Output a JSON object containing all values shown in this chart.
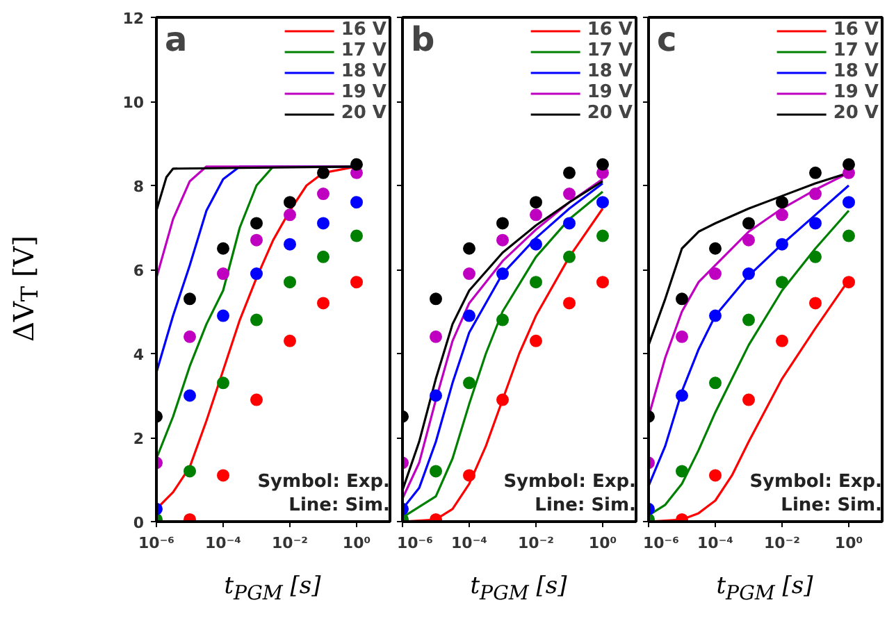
{
  "chart_data": [
    {
      "type": "line",
      "title": "a",
      "ylabel": "ΔV$_{T}$ [V]",
      "xlabel": "t$_{PGM}$ [s]",
      "log": "x",
      "xlim": [
        1e-06,
        10
      ],
      "ylim": [
        0,
        12
      ],
      "xticks": [
        {
          "value": 1e-06,
          "label": "10⁻⁶"
        },
        {
          "value": 0.0001,
          "label": "10⁻⁴"
        },
        {
          "value": 0.01,
          "label": "10⁻²"
        },
        {
          "value": 1,
          "label": "10⁰"
        }
      ],
      "yticks": [
        0,
        2,
        4,
        6,
        8,
        10,
        12
      ],
      "legend": "top right",
      "grid": false,
      "annotations": [
        "Symbol: Exp.",
        "Line: Sim."
      ],
      "series": [
        {
          "name": "16 V",
          "color": "#ff0000",
          "x": [
            1e-06,
            3.16e-06,
            1e-05,
            3.16e-05,
            0.0001,
            0.000316,
            0.001,
            0.00316,
            0.01,
            0.0316,
            0.1,
            1
          ],
          "values": [
            0.3,
            0.7,
            1.3,
            2.4,
            3.6,
            4.8,
            5.8,
            6.7,
            7.4,
            8.0,
            8.3,
            8.45
          ]
        },
        {
          "name": "17 V",
          "color": "#008000",
          "x": [
            1e-06,
            3.16e-06,
            1e-05,
            3.16e-05,
            0.0001,
            0.000316,
            0.001,
            0.00316,
            1
          ],
          "values": [
            1.5,
            2.5,
            3.7,
            4.7,
            5.5,
            7.0,
            8.0,
            8.45,
            8.45
          ]
        },
        {
          "name": "18 V",
          "color": "#0000ff",
          "x": [
            1e-06,
            3.16e-06,
            1e-05,
            3.16e-05,
            0.0001,
            0.000316,
            1
          ],
          "values": [
            3.55,
            4.9,
            6.1,
            7.4,
            8.15,
            8.45,
            8.45
          ]
        },
        {
          "name": "19 V",
          "color": "#c000c0",
          "x": [
            1e-06,
            3.16e-06,
            1e-05,
            3.16e-05,
            1
          ],
          "values": [
            5.8,
            7.2,
            8.1,
            8.45,
            8.45
          ]
        },
        {
          "name": "20 V",
          "color": "#000000",
          "x": [
            1e-06,
            2e-06,
            3.16e-06,
            1
          ],
          "values": [
            7.4,
            8.2,
            8.4,
            8.45
          ]
        },
        {
          "type": "scatter",
          "color": "#ff0000",
          "x": [
            1e-05,
            0.0001,
            0.001,
            0.01,
            0.1,
            1
          ],
          "values": [
            0.05,
            1.1,
            2.9,
            4.3,
            5.2,
            5.7
          ]
        },
        {
          "type": "scatter",
          "color": "#008000",
          "x": [
            1e-06,
            1e-05,
            0.0001,
            0.001,
            0.01,
            0.1,
            1
          ],
          "values": [
            0.05,
            1.2,
            3.3,
            4.8,
            5.7,
            6.3,
            6.8
          ]
        },
        {
          "type": "scatter",
          "color": "#0000ff",
          "x": [
            1e-06,
            1e-05,
            0.0001,
            0.001,
            0.01,
            0.1,
            1
          ],
          "values": [
            0.3,
            3.0,
            4.9,
            5.9,
            6.6,
            7.1,
            7.6
          ]
        },
        {
          "type": "scatter",
          "color": "#c000c0",
          "x": [
            1e-06,
            1e-05,
            0.0001,
            0.001,
            0.01,
            0.1,
            1
          ],
          "values": [
            1.4,
            4.4,
            5.9,
            6.7,
            7.3,
            7.8,
            8.3
          ]
        },
        {
          "type": "scatter",
          "color": "#000000",
          "x": [
            1e-06,
            1e-05,
            0.0001,
            0.001,
            0.01,
            0.1,
            1
          ],
          "values": [
            2.5,
            5.3,
            6.5,
            7.1,
            7.6,
            8.3,
            8.5
          ]
        }
      ]
    },
    {
      "type": "line",
      "title": "b",
      "xlabel": "t$_{PGM}$ [s]",
      "log": "x",
      "xlim": [
        1e-06,
        10
      ],
      "ylim": [
        0,
        12
      ],
      "tick_labels": "x",
      "xticks": [
        {
          "value": 1e-06,
          "label": "10⁻⁶"
        },
        {
          "value": 0.0001,
          "label": "10⁻⁴"
        },
        {
          "value": 0.01,
          "label": "10⁻²"
        },
        {
          "value": 1,
          "label": "10⁰"
        }
      ],
      "yticks": [
        0,
        2,
        4,
        6,
        8,
        10,
        12
      ],
      "legend": "top right",
      "grid": false,
      "annotations": [
        "Symbol: Exp.",
        "Line: Sim."
      ],
      "series": [
        {
          "name": "16 V",
          "color": "#ff0000",
          "x": [
            1e-06,
            1e-05,
            3.16e-05,
            0.0001,
            0.000316,
            0.001,
            0.00316,
            0.01,
            0.1,
            1
          ],
          "values": [
            0,
            0.05,
            0.3,
            0.9,
            1.8,
            2.9,
            4.0,
            4.9,
            6.3,
            7.45
          ]
        },
        {
          "name": "17 V",
          "color": "#008000",
          "x": [
            1e-06,
            1e-05,
            3.16e-05,
            0.0001,
            0.000316,
            0.001,
            0.01,
            0.1,
            1
          ],
          "values": [
            0.1,
            0.6,
            1.5,
            2.8,
            4.0,
            5.0,
            6.3,
            7.2,
            7.85
          ]
        },
        {
          "name": "18 V",
          "color": "#0000ff",
          "x": [
            1e-06,
            3.16e-06,
            1e-05,
            3.16e-05,
            0.0001,
            0.001,
            0.01,
            0.1,
            1
          ],
          "values": [
            0.3,
            0.8,
            1.9,
            3.3,
            4.5,
            5.9,
            6.75,
            7.45,
            8.05
          ]
        },
        {
          "name": "19 V",
          "color": "#c000c0",
          "x": [
            1e-06,
            3.16e-06,
            1e-05,
            3.16e-05,
            0.0001,
            0.001,
            0.01,
            0.1,
            1
          ],
          "values": [
            0.55,
            1.4,
            2.9,
            4.3,
            5.2,
            6.2,
            6.95,
            7.6,
            8.15
          ]
        },
        {
          "name": "20 V",
          "color": "#000000",
          "x": [
            1e-06,
            3.16e-06,
            1e-05,
            3.16e-05,
            0.0001,
            0.001,
            0.01,
            0.1,
            1
          ],
          "values": [
            0.75,
            1.9,
            3.4,
            4.7,
            5.5,
            6.4,
            7.05,
            7.6,
            8.1
          ]
        },
        {
          "type": "scatter",
          "color": "#ff0000",
          "x": [
            1e-05,
            0.0001,
            0.001,
            0.01,
            0.1,
            1
          ],
          "values": [
            0.05,
            1.1,
            2.9,
            4.3,
            5.2,
            5.7
          ]
        },
        {
          "type": "scatter",
          "color": "#008000",
          "x": [
            1e-06,
            1e-05,
            0.0001,
            0.001,
            0.01,
            0.1,
            1
          ],
          "values": [
            0.05,
            1.2,
            3.3,
            4.8,
            5.7,
            6.3,
            6.8
          ]
        },
        {
          "type": "scatter",
          "color": "#0000ff",
          "x": [
            1e-06,
            1e-05,
            0.0001,
            0.001,
            0.01,
            0.1,
            1
          ],
          "values": [
            0.3,
            3.0,
            4.9,
            5.9,
            6.6,
            7.1,
            7.6
          ]
        },
        {
          "type": "scatter",
          "color": "#c000c0",
          "x": [
            1e-06,
            1e-05,
            0.0001,
            0.001,
            0.01,
            0.1,
            1
          ],
          "values": [
            1.4,
            4.4,
            5.9,
            6.7,
            7.3,
            7.8,
            8.3
          ]
        },
        {
          "type": "scatter",
          "color": "#000000",
          "x": [
            1e-06,
            1e-05,
            0.0001,
            0.001,
            0.01,
            0.1,
            1
          ],
          "values": [
            2.5,
            5.3,
            6.5,
            7.1,
            7.6,
            8.3,
            8.5
          ]
        }
      ]
    },
    {
      "type": "line",
      "title": "c",
      "xlabel": "t$_{PGM}$ [s]",
      "log": "x",
      "xlim": [
        1e-06,
        10
      ],
      "ylim": [
        0,
        12
      ],
      "tick_labels": "x",
      "xticks": [
        {
          "value": 1e-06,
          "label": "10⁻⁶"
        },
        {
          "value": 0.0001,
          "label": "10⁻⁴"
        },
        {
          "value": 0.01,
          "label": "10⁻²"
        },
        {
          "value": 1,
          "label": "10⁰"
        }
      ],
      "yticks": [
        0,
        2,
        4,
        6,
        8,
        10,
        12
      ],
      "legend": "top right",
      "grid": false,
      "annotations": [
        "Symbol: Exp.",
        "Line: Sim."
      ],
      "series": [
        {
          "name": "16 V",
          "color": "#ff0000",
          "x": [
            1e-06,
            1e-05,
            3.16e-05,
            0.0001,
            0.000316,
            0.001,
            0.01,
            0.1,
            1
          ],
          "values": [
            0,
            0.05,
            0.2,
            0.5,
            1.1,
            1.9,
            3.4,
            4.6,
            5.75
          ]
        },
        {
          "name": "17 V",
          "color": "#008000",
          "x": [
            1e-06,
            3.16e-06,
            1e-05,
            3.16e-05,
            0.0001,
            0.000316,
            0.001,
            0.01,
            0.1,
            1
          ],
          "values": [
            0.15,
            0.4,
            0.9,
            1.7,
            2.6,
            3.4,
            4.2,
            5.5,
            6.5,
            7.4
          ]
        },
        {
          "name": "18 V",
          "color": "#0000ff",
          "x": [
            1e-06,
            3.16e-06,
            1e-05,
            3.16e-05,
            0.0001,
            0.001,
            0.01,
            0.1,
            1
          ],
          "values": [
            0.85,
            1.8,
            3.1,
            4.1,
            4.9,
            5.85,
            6.6,
            7.3,
            8.0
          ]
        },
        {
          "name": "19 V",
          "color": "#c000c0",
          "x": [
            1e-06,
            3.16e-06,
            1e-05,
            3.16e-05,
            0.0001,
            0.001,
            0.01,
            0.1,
            1
          ],
          "values": [
            2.5,
            3.9,
            5.0,
            5.7,
            6.1,
            6.9,
            7.45,
            7.9,
            8.3
          ]
        },
        {
          "name": "20 V",
          "color": "#000000",
          "x": [
            1e-06,
            3.16e-06,
            1e-05,
            3.16e-05,
            0.0001,
            0.001,
            0.01,
            0.1,
            1
          ],
          "values": [
            4.2,
            5.3,
            6.5,
            6.9,
            7.1,
            7.45,
            7.75,
            8.05,
            8.3
          ]
        },
        {
          "type": "scatter",
          "color": "#ff0000",
          "x": [
            1e-05,
            0.0001,
            0.001,
            0.01,
            0.1,
            1
          ],
          "values": [
            0.05,
            1.1,
            2.9,
            4.3,
            5.2,
            5.7
          ]
        },
        {
          "type": "scatter",
          "color": "#008000",
          "x": [
            1e-06,
            1e-05,
            0.0001,
            0.001,
            0.01,
            0.1,
            1
          ],
          "values": [
            0.05,
            1.2,
            3.3,
            4.8,
            5.7,
            6.3,
            6.8
          ]
        },
        {
          "type": "scatter",
          "color": "#0000ff",
          "x": [
            1e-06,
            1e-05,
            0.0001,
            0.001,
            0.01,
            0.1,
            1
          ],
          "values": [
            0.3,
            3.0,
            4.9,
            5.9,
            6.6,
            7.1,
            7.6
          ]
        },
        {
          "type": "scatter",
          "color": "#c000c0",
          "x": [
            1e-06,
            1e-05,
            0.0001,
            0.001,
            0.01,
            0.1,
            1
          ],
          "values": [
            1.4,
            4.4,
            5.9,
            6.7,
            7.3,
            7.8,
            8.3
          ]
        },
        {
          "type": "scatter",
          "color": "#000000",
          "x": [
            1e-06,
            1e-05,
            0.0001,
            0.001,
            0.01,
            0.1,
            1
          ],
          "values": [
            2.5,
            5.3,
            6.5,
            7.1,
            7.6,
            8.3,
            8.5
          ]
        }
      ]
    }
  ]
}
